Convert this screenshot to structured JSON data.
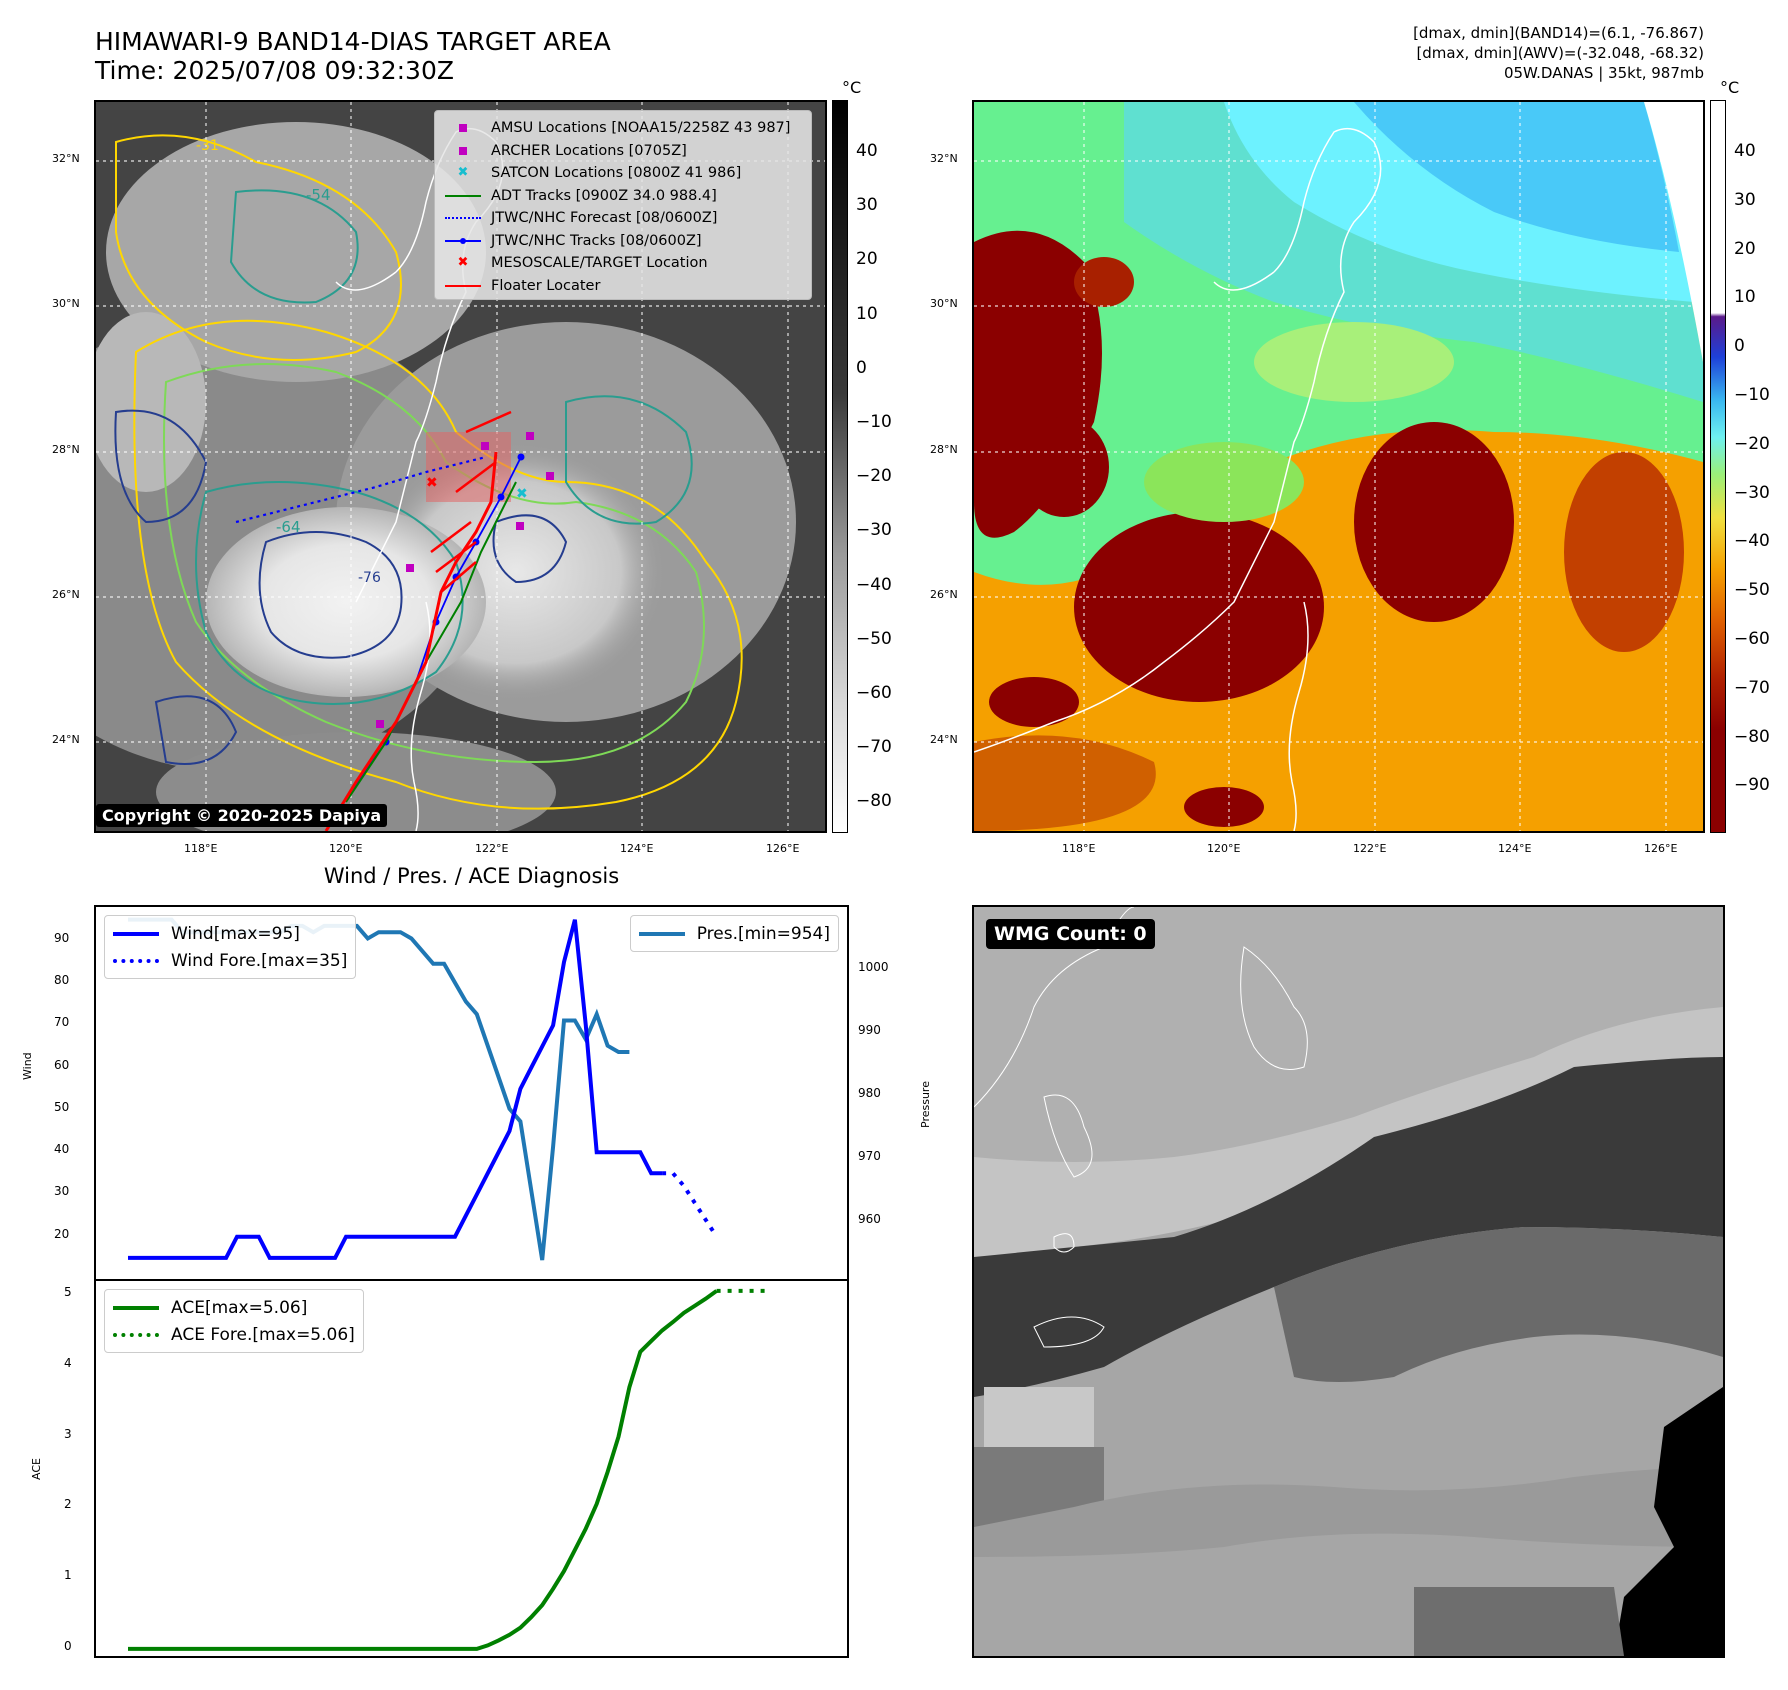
{
  "header": {
    "title_line1": "HIMAWARI-9 BAND14-DIAS TARGET AREA",
    "title_line2": "Time: 2025/07/08 09:32:30Z",
    "info_line1": "[dmax, dmin](BAND14)=(6.1, -76.867)",
    "info_line2": "[dmax, dmin](AWV)=(-32.048, -68.32)",
    "info_line3": "05W.DANAS | 35kt, 987mb"
  },
  "map_axes": {
    "lat_labels": [
      "32°N",
      "30°N",
      "28°N",
      "26°N",
      "24°N"
    ],
    "lon_labels": [
      "118°E",
      "120°E",
      "122°E",
      "124°E",
      "126°E"
    ]
  },
  "colorbar_ir": {
    "unit": "°C",
    "ticks": [
      "40",
      "30",
      "20",
      "10",
      "0",
      "−10",
      "−20",
      "−30",
      "−40",
      "−50",
      "−60",
      "−70",
      "−80"
    ]
  },
  "colorbar_awv": {
    "unit": "°C",
    "ticks": [
      "40",
      "30",
      "20",
      "10",
      "0",
      "−10",
      "−20",
      "−30",
      "−40",
      "−50",
      "−60",
      "−70",
      "−80",
      "−90"
    ]
  },
  "map_legend": [
    {
      "label": "AMSU Locations [NOAA15/2258Z 43 987]",
      "color": "#c000c0"
    },
    {
      "label": "ARCHER Locations [0705Z]",
      "color": "#c000c0"
    },
    {
      "label": "SATCON Locations [0800Z 41 986]",
      "color": "#17becf"
    },
    {
      "label": "ADT Tracks [0900Z 34.0 988.4]",
      "color": "#008000"
    },
    {
      "label": "JTWC/NHC Forecast [08/0600Z]",
      "color": "#0000ff"
    },
    {
      "label": "JTWC/NHC Tracks [08/0600Z]",
      "color": "#0000ff"
    },
    {
      "label": "MESOSCALE/TARGET Location",
      "color": "#ff0000"
    },
    {
      "label": "Floater Locater",
      "color": "#ff0000"
    }
  ],
  "contour_labels": [
    "-31",
    "-54",
    "-64",
    "-76"
  ],
  "copyright": "Copyright © 2020-2025 Dapiya",
  "wmg_label": "WMG Count: 0",
  "diagnosis_title": "Wind / Pres. / ACE Diagnosis",
  "wind_panel": {
    "ylabel_left": "Wind",
    "ylabel_right": "Pressure",
    "left_ticks": [
      "90",
      "80",
      "70",
      "60",
      "50",
      "40",
      "30",
      "20"
    ],
    "right_ticks": [
      "1000",
      "990",
      "980",
      "970",
      "960"
    ],
    "legend_left": [
      {
        "label": "Wind[max=95]",
        "color": "#0000ff",
        "style": "solid"
      },
      {
        "label": "Wind Fore.[max=35]",
        "color": "#0000ff",
        "style": "dotted"
      }
    ],
    "legend_right": [
      {
        "label": "Pres.[min=954]",
        "color": "#1f77b4",
        "style": "solid"
      }
    ]
  },
  "ace_panel": {
    "ylabel": "ACE",
    "ticks": [
      "5",
      "4",
      "3",
      "2",
      "1",
      "0"
    ],
    "legend": [
      {
        "label": "ACE[max=5.06]",
        "color": "#008000",
        "style": "solid"
      },
      {
        "label": "ACE Fore.[max=5.06]",
        "color": "#008000",
        "style": "dotted"
      }
    ]
  },
  "colors": {
    "wind": "#0000ff",
    "pressure": "#1f77b4",
    "ace": "#008000",
    "track_red": "#ff0000"
  },
  "chart_data": [
    {
      "type": "line",
      "title": "Wind / Pres. / ACE Diagnosis",
      "ylabel": "Wind",
      "ylim": [
        10,
        98
      ],
      "x": [
        0,
        1,
        2,
        3,
        4,
        5,
        6,
        7,
        8,
        9,
        10,
        11,
        12,
        13,
        14,
        15,
        16,
        17,
        18,
        19,
        20,
        21,
        22,
        23,
        24,
        25,
        26,
        27,
        28,
        29,
        30,
        31,
        32,
        33,
        34,
        35,
        36,
        37,
        38,
        39,
        40,
        41,
        42,
        43,
        44,
        45,
        46,
        47,
        48,
        49,
        50,
        51,
        52,
        53,
        54,
        55
      ],
      "series": [
        {
          "name": "Wind[max=95]",
          "values": [
            15,
            15,
            15,
            15,
            15,
            15,
            15,
            15,
            15,
            15,
            20,
            20,
            20,
            15,
            15,
            15,
            15,
            15,
            15,
            15,
            20,
            20,
            20,
            20,
            20,
            20,
            20,
            20,
            20,
            20,
            20,
            25,
            30,
            35,
            40,
            45,
            55,
            60,
            65,
            70,
            85,
            95,
            70,
            40,
            40,
            40,
            40,
            40,
            35,
            35,
            null,
            null,
            null,
            null,
            null,
            null
          ]
        },
        {
          "name": "Wind Fore.[max=35]",
          "values": [
            null,
            null,
            null,
            null,
            null,
            null,
            null,
            null,
            null,
            null,
            null,
            null,
            null,
            null,
            null,
            null,
            null,
            null,
            null,
            null,
            null,
            null,
            null,
            null,
            null,
            null,
            null,
            null,
            null,
            null,
            null,
            null,
            null,
            null,
            null,
            null,
            null,
            null,
            null,
            null,
            null,
            null,
            null,
            null,
            null,
            null,
            null,
            null,
            null,
            35,
            35,
            32,
            28,
            24,
            20,
            null
          ]
        }
      ]
    },
    {
      "type": "line",
      "ylabel": "Pressure",
      "ylim": [
        951,
        1010
      ],
      "x": [
        0,
        1,
        2,
        3,
        4,
        5,
        6,
        7,
        8,
        9,
        10,
        11,
        12,
        13,
        14,
        15,
        16,
        17,
        18,
        19,
        20,
        21,
        22,
        23,
        24,
        25,
        26,
        27,
        28,
        29,
        30,
        31,
        32,
        33,
        34,
        35,
        36,
        37,
        38,
        39,
        40,
        41,
        42,
        43,
        44,
        45,
        46,
        47,
        48,
        49
      ],
      "series": [
        {
          "name": "Pres.[min=954]",
          "values": [
            1008,
            1008,
            1008,
            1008,
            1008,
            1006,
            1006,
            1006,
            1006,
            1006,
            1006,
            1006,
            1006,
            1006,
            1006,
            1007,
            1007,
            1006,
            1007,
            1007,
            1007,
            1007,
            1005,
            1006,
            1006,
            1006,
            1005,
            1003,
            1001,
            1001,
            998,
            995,
            993,
            988,
            983,
            978,
            976,
            965,
            954,
            972,
            992,
            992,
            989,
            993,
            988,
            987,
            987,
            null,
            null,
            null
          ]
        }
      ]
    },
    {
      "type": "line",
      "ylabel": "ACE",
      "ylim": [
        -0.1,
        5.2
      ],
      "x": [
        0,
        1,
        2,
        3,
        4,
        5,
        6,
        7,
        8,
        9,
        10,
        11,
        12,
        13,
        14,
        15,
        16,
        17,
        18,
        19,
        20,
        21,
        22,
        23,
        24,
        25,
        26,
        27,
        28,
        29,
        30,
        31,
        32,
        33,
        34,
        35,
        36,
        37,
        38,
        39,
        40,
        41,
        42,
        43,
        44,
        45,
        46,
        47,
        48,
        49,
        50,
        51,
        52,
        53,
        54
      ],
      "series": [
        {
          "name": "ACE[max=5.06]",
          "values": [
            0,
            0,
            0,
            0,
            0,
            0,
            0,
            0,
            0,
            0,
            0,
            0,
            0,
            0,
            0,
            0,
            0,
            0,
            0,
            0,
            0,
            0,
            0,
            0,
            0,
            0,
            0,
            0,
            0,
            0,
            0,
            0,
            0,
            0.05,
            0.12,
            0.2,
            0.3,
            0.45,
            0.62,
            0.85,
            1.1,
            1.4,
            1.7,
            2.05,
            2.5,
            3.0,
            3.7,
            4.2,
            4.35,
            4.5,
            4.62,
            4.75,
            4.85,
            4.95,
            5.06
          ]
        },
        {
          "name": "ACE Fore.[max=5.06]",
          "values": [
            null,
            null,
            null,
            null,
            null,
            null,
            null,
            null,
            null,
            null,
            null,
            null,
            null,
            null,
            null,
            null,
            null,
            null,
            null,
            null,
            null,
            null,
            null,
            null,
            null,
            null,
            null,
            null,
            null,
            null,
            null,
            null,
            null,
            null,
            null,
            null,
            null,
            null,
            null,
            null,
            null,
            null,
            null,
            null,
            null,
            null,
            null,
            null,
            null,
            null,
            null,
            null,
            null,
            null,
            5.06
          ]
        }
      ]
    }
  ]
}
